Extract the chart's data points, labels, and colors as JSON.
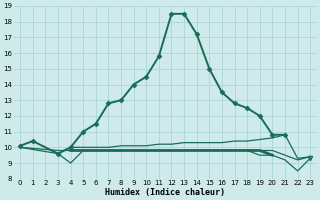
{
  "xlabel": "Humidex (Indice chaleur)",
  "bg_color": "#ceeaea",
  "grid_color": "#b0d8d8",
  "line_color": "#1a6b5a",
  "xlim": [
    -0.5,
    23.5
  ],
  "ylim": [
    8,
    19
  ],
  "xticks": [
    0,
    1,
    2,
    3,
    4,
    5,
    6,
    7,
    8,
    9,
    10,
    11,
    12,
    13,
    14,
    15,
    16,
    17,
    18,
    19,
    20,
    21,
    22,
    23
  ],
  "yticks": [
    8,
    9,
    10,
    11,
    12,
    13,
    14,
    15,
    16,
    17,
    18,
    19
  ],
  "series": [
    {
      "x": [
        0,
        1,
        3,
        4,
        5,
        6,
        7,
        8,
        9,
        10,
        11,
        12,
        13,
        14,
        15,
        16,
        17,
        18,
        19,
        20,
        21,
        22
      ],
      "y": [
        10.1,
        10.4,
        9.6,
        10.0,
        11.0,
        11.5,
        12.8,
        13.0,
        14.0,
        14.5,
        15.8,
        18.5,
        18.5,
        17.2,
        15.0,
        13.5,
        12.8,
        12.5,
        12.0,
        10.8,
        10.8,
        null
      ],
      "lw": 1.4,
      "marker": "D",
      "ms": 2.5
    },
    {
      "x": [
        0,
        3,
        4,
        5,
        6,
        7,
        8,
        9,
        10,
        11,
        12,
        13,
        14,
        15,
        16,
        17,
        18,
        19,
        20,
        21,
        22,
        23
      ],
      "y": [
        10.0,
        9.6,
        10.0,
        10.0,
        10.0,
        10.0,
        10.1,
        10.1,
        10.1,
        10.2,
        10.2,
        10.3,
        10.3,
        10.3,
        10.3,
        10.4,
        10.4,
        10.5,
        10.6,
        10.8,
        9.3,
        9.4
      ],
      "lw": 0.9,
      "marker": null,
      "ms": 0
    },
    {
      "x": [
        0,
        3,
        4,
        5,
        6,
        7,
        8,
        9,
        10,
        11,
        12,
        13,
        14,
        15,
        16,
        17,
        18,
        19,
        20,
        21,
        22,
        23
      ],
      "y": [
        10.0,
        9.8,
        9.8,
        9.8,
        9.8,
        9.8,
        9.8,
        9.8,
        9.8,
        9.8,
        9.8,
        9.8,
        9.8,
        9.8,
        9.8,
        9.8,
        9.8,
        9.8,
        9.8,
        9.5,
        9.2,
        9.4
      ],
      "lw": 0.9,
      "marker": null,
      "ms": 0
    },
    {
      "x": [
        4,
        5,
        6,
        7,
        8,
        9,
        10,
        11,
        12,
        13,
        14,
        15,
        16,
        17,
        18,
        19,
        20
      ],
      "y": [
        9.8,
        9.8,
        9.8,
        9.8,
        9.8,
        9.8,
        9.8,
        9.8,
        9.8,
        9.8,
        9.8,
        9.8,
        9.8,
        9.8,
        9.8,
        9.8,
        9.5
      ],
      "lw": 2.0,
      "marker": null,
      "ms": 0
    },
    {
      "x": [
        3,
        4,
        5,
        6,
        7,
        8,
        9,
        10,
        11,
        12,
        13,
        14,
        15,
        16,
        17,
        18,
        19,
        20,
        21,
        22,
        23
      ],
      "y": [
        9.6,
        9.0,
        9.8,
        9.8,
        9.8,
        9.8,
        9.8,
        9.8,
        9.8,
        9.8,
        9.8,
        9.8,
        9.8,
        9.8,
        9.8,
        9.8,
        9.5,
        9.5,
        9.2,
        8.5,
        9.3
      ],
      "lw": 0.9,
      "marker": "v",
      "ms": 3.0,
      "markevery_last": true
    }
  ]
}
